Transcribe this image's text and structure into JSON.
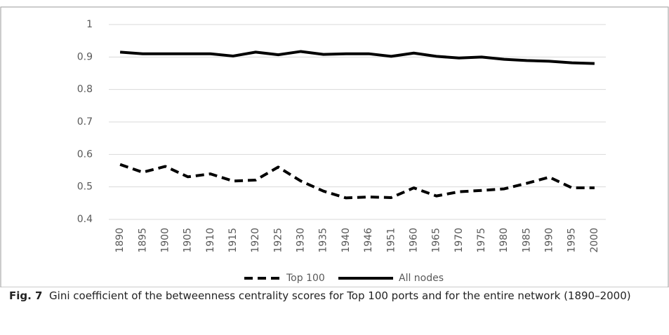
{
  "chart_data": {
    "type": "line",
    "categories": [
      "1890",
      "1895",
      "1900",
      "1905",
      "1910",
      "1915",
      "1920",
      "1925",
      "1930",
      "1935",
      "1940",
      "1946",
      "1951",
      "1960",
      "1965",
      "1970",
      "1975",
      "1980",
      "1985",
      "1990",
      "1995",
      "2000"
    ],
    "series": [
      {
        "name": "Top 100",
        "color": "#000000",
        "line_style": "dashed",
        "values": [
          0.569,
          0.545,
          0.563,
          0.531,
          0.54,
          0.518,
          0.521,
          0.561,
          0.518,
          0.487,
          0.466,
          0.469,
          0.467,
          0.497,
          0.472,
          0.485,
          0.489,
          0.494,
          0.511,
          0.53,
          0.497,
          0.497
        ]
      },
      {
        "name": "All nodes",
        "color": "#000000",
        "line_style": "solid",
        "values": [
          0.915,
          0.91,
          0.91,
          0.91,
          0.91,
          0.903,
          0.915,
          0.907,
          0.917,
          0.908,
          0.91,
          0.91,
          0.902,
          0.912,
          0.902,
          0.897,
          0.9,
          0.893,
          0.889,
          0.887,
          0.882,
          0.88
        ]
      }
    ],
    "ylim": [
      0.4,
      1
    ],
    "yticks": [
      0.4,
      0.5,
      0.6,
      0.7,
      0.8,
      0.9,
      1
    ],
    "grid": true,
    "legend": "bottom"
  },
  "caption_label": "Fig. 7",
  "caption": "Gini coefficient of the betweenness centrality scores for Top 100 ports and for the entire network (1890–2000)"
}
